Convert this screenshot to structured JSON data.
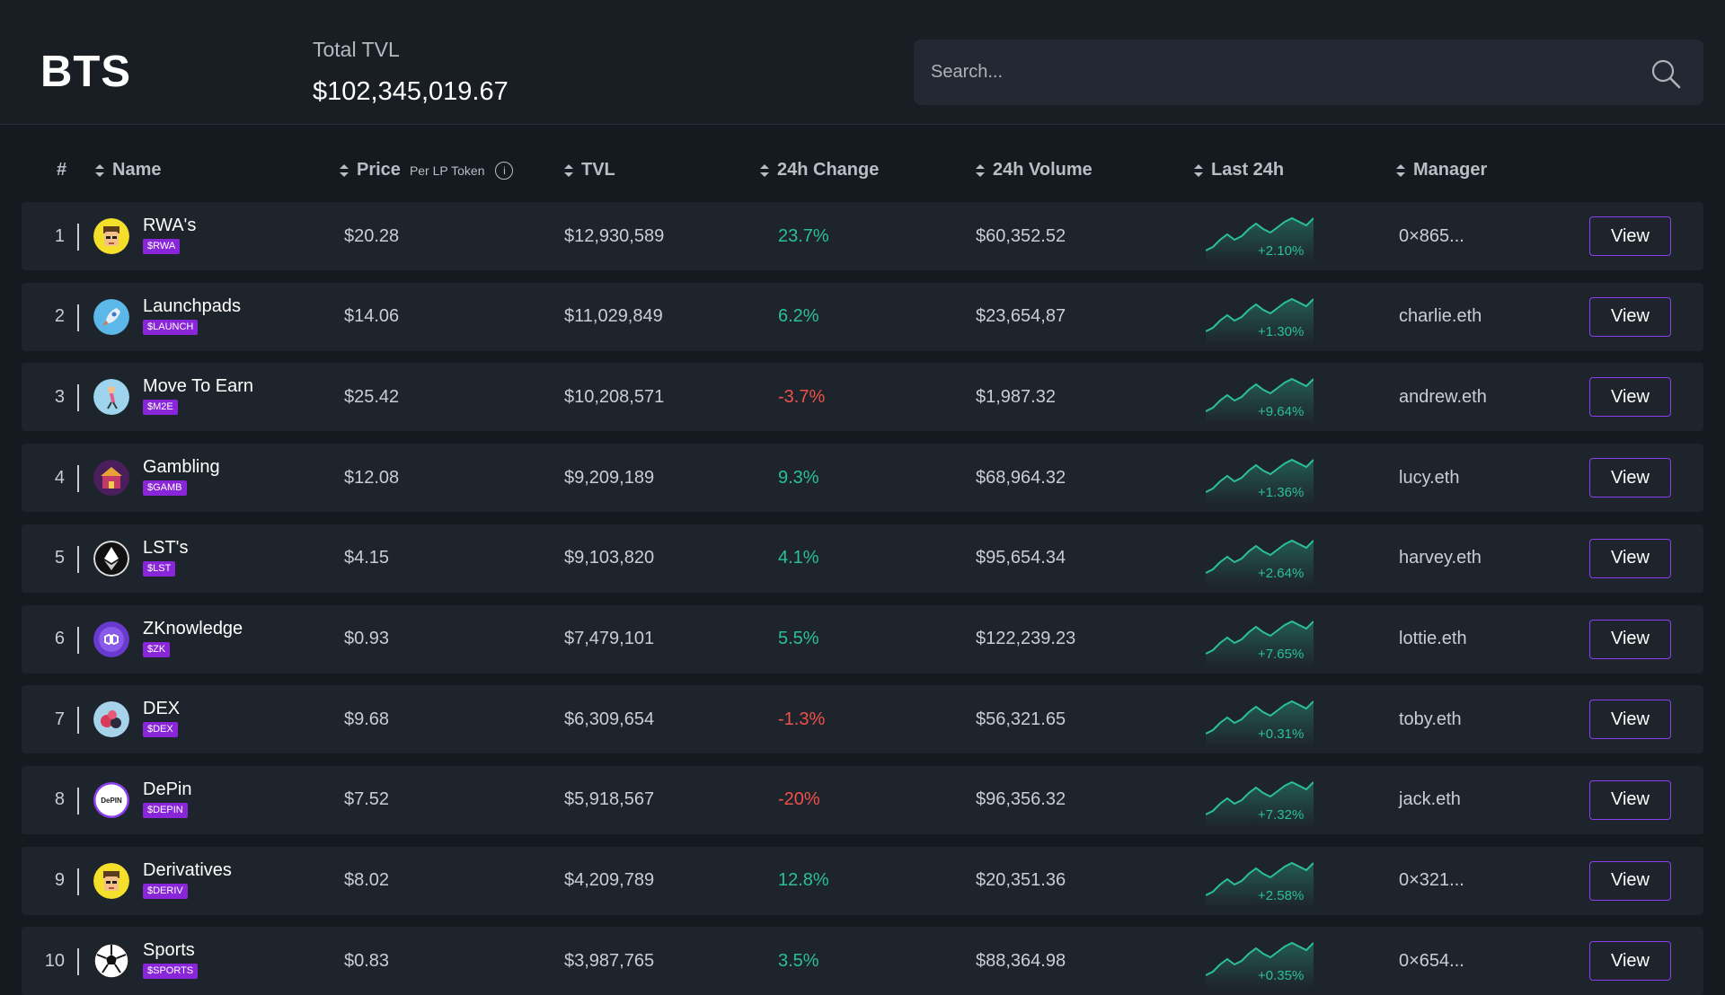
{
  "header": {
    "logo": "BTS",
    "total_tvl_label": "Total TVL",
    "total_tvl_value": "$102,345,019.67",
    "search_placeholder": "Search..."
  },
  "columns": {
    "rank": "#",
    "name": "Name",
    "price": "Price",
    "price_sub": "Per LP Token",
    "tvl": "TVL",
    "change": "24h Change",
    "volume": "24h Volume",
    "last24": "Last 24h",
    "manager": "Manager"
  },
  "colors": {
    "positive": "#2bbf9a",
    "negative": "#f0504a",
    "badge": "#8a26d9",
    "button_border": "#8a3ff0"
  },
  "rows": [
    {
      "rank": "1",
      "name": "RWA's",
      "ticker": "$RWA",
      "icon": "rwa-avatar-icon",
      "price": "$20.28",
      "tvl": "$12,930,589",
      "change": "23.7%",
      "dir": "pos",
      "volume": "$60,352.52",
      "spark": "+2.10%",
      "manager": "0×865...",
      "view": "View"
    },
    {
      "rank": "2",
      "name": "Launchpads",
      "ticker": "$LAUNCH",
      "icon": "rocket-icon",
      "price": "$14.06",
      "tvl": "$11,029,849",
      "change": "6.2%",
      "dir": "pos",
      "volume": "$23,654,87",
      "spark": "+1.30%",
      "manager": "charlie.eth",
      "view": "View"
    },
    {
      "rank": "3",
      "name": "Move To Earn",
      "ticker": "$M2E",
      "icon": "runner-icon",
      "price": "$25.42",
      "tvl": "$10,208,571",
      "change": "-3.7%",
      "dir": "neg",
      "volume": "$1,987.32",
      "spark": "+9.64%",
      "manager": "andrew.eth",
      "view": "View"
    },
    {
      "rank": "4",
      "name": "Gambling",
      "ticker": "$GAMB",
      "icon": "casino-icon",
      "price": "$12.08",
      "tvl": "$9,209,189",
      "change": "9.3%",
      "dir": "pos",
      "volume": "$68,964.32",
      "spark": "+1.36%",
      "manager": "lucy.eth",
      "view": "View"
    },
    {
      "rank": "5",
      "name": "LST's",
      "ticker": "$LST",
      "icon": "ethereum-icon",
      "price": "$4.15",
      "tvl": "$9,103,820",
      "change": "4.1%",
      "dir": "pos",
      "volume": "$95,654.34",
      "spark": "+2.64%",
      "manager": "harvey.eth",
      "view": "View"
    },
    {
      "rank": "6",
      "name": "ZKnowledge",
      "ticker": "$ZK",
      "icon": "polygon-icon",
      "price": "$0.93",
      "tvl": "$7,479,101",
      "change": "5.5%",
      "dir": "pos",
      "volume": "$122,239.23",
      "spark": "+7.65%",
      "manager": "lottie.eth",
      "view": "View"
    },
    {
      "rank": "7",
      "name": "DEX",
      "ticker": "$DEX",
      "icon": "dex-icon",
      "price": "$9.68",
      "tvl": "$6,309,654",
      "change": "-1.3%",
      "dir": "neg",
      "volume": "$56,321.65",
      "spark": "+0.31%",
      "manager": "toby.eth",
      "view": "View"
    },
    {
      "rank": "8",
      "name": "DePin",
      "ticker": "$DEPIN",
      "icon": "depin-icon",
      "price": "$7.52",
      "tvl": "$5,918,567",
      "change": "-20%",
      "dir": "neg",
      "volume": "$96,356.32",
      "spark": "+7.32%",
      "manager": "jack.eth",
      "view": "View"
    },
    {
      "rank": "9",
      "name": "Derivatives",
      "ticker": "$DERIV",
      "icon": "derivatives-avatar-icon",
      "price": "$8.02",
      "tvl": "$4,209,789",
      "change": "12.8%",
      "dir": "pos",
      "volume": "$20,351.36",
      "spark": "+2.58%",
      "manager": "0×321...",
      "view": "View"
    },
    {
      "rank": "10",
      "name": "Sports",
      "ticker": "$SPORTS",
      "icon": "soccer-ball-icon",
      "price": "$0.83",
      "tvl": "$3,987,765",
      "change": "3.5%",
      "dir": "pos",
      "volume": "$88,364.98",
      "spark": "+0.35%",
      "manager": "0×654...",
      "view": "View"
    }
  ]
}
